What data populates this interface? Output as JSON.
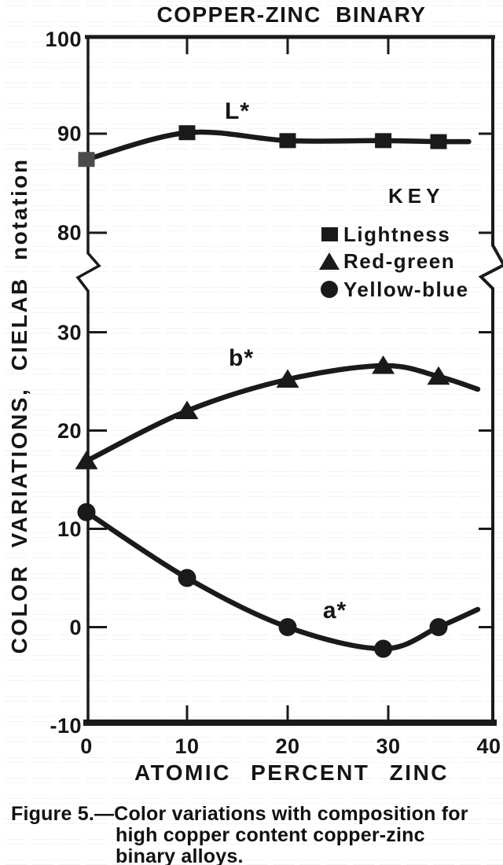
{
  "chart_data": {
    "type": "line",
    "title": "COPPER-ZINC BINARY",
    "xlabel": "ATOMIC PERCENT ZINC",
    "ylabel": "COLOR VARIATIONS, CIELAB notation",
    "x_range": [
      0,
      40
    ],
    "x_ticks": [
      0,
      10,
      20,
      30,
      40
    ],
    "y_axis_break": true,
    "y_upper_ticks": [
      100,
      90,
      80
    ],
    "y_lower_ticks": [
      30,
      20,
      10,
      0,
      -10
    ],
    "x": [
      0,
      10,
      20,
      29.5,
      35
    ],
    "series": [
      {
        "curve_label": "L*",
        "marker": "square",
        "axis_section": "upper",
        "values": [
          87.4,
          90.1,
          89.3,
          89.3,
          89.2
        ],
        "extend_to": {
          "x": 38.0,
          "y": 89.2
        },
        "first_marker_color": "#4b4b4b"
      },
      {
        "curve_label": "b*",
        "marker": "triangle",
        "axis_section": "lower",
        "values": [
          16.9,
          22.0,
          25.2,
          26.6,
          25.5
        ],
        "extend_to": {
          "x": 38.9,
          "y": 24.2
        }
      },
      {
        "curve_label": "a*",
        "marker": "circle",
        "axis_section": "lower",
        "values": [
          11.7,
          5.0,
          0.0,
          -2.2,
          0.0
        ],
        "extend_to": {
          "x": 38.9,
          "y": 1.8
        }
      }
    ],
    "legend": {
      "title": "KEY",
      "position": "upper-right",
      "entries": [
        {
          "marker": "square",
          "label": "Lightness"
        },
        {
          "marker": "triangle",
          "label": "Red-green"
        },
        {
          "marker": "circle",
          "label": "Yellow-blue"
        }
      ]
    },
    "ink_color": "#1a1a1a"
  },
  "caption": {
    "lines": [
      "Figure 5.—Color variations with composition for",
      "high copper content copper-zinc",
      "binary alloys."
    ]
  }
}
